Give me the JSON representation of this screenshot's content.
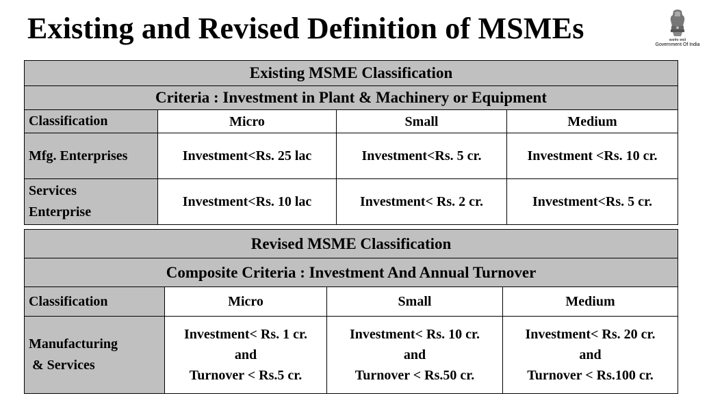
{
  "title": "Existing and Revised Definition of MSMEs",
  "emblem": {
    "motto": "सत्यमेव जयते",
    "caption": "Government Of India"
  },
  "existing": {
    "heading": "Existing MSME Classification",
    "criteria": "Criteria  :  Investment in Plant & Machinery or Equipment",
    "columns": [
      "Classification",
      "Micro",
      "Small",
      "Medium"
    ],
    "rows": [
      {
        "label": "Mfg. Enterprises",
        "micro": "Investment<Rs. 25 lac",
        "small": "Investment<Rs. 5 cr.",
        "medium": "Investment <Rs. 10 cr."
      },
      {
        "label_lines": [
          "Services",
          "Enterprise"
        ],
        "micro": "Investment<Rs. 10 lac",
        "small": "Investment< Rs. 2 cr.",
        "medium": "Investment<Rs. 5 cr."
      }
    ]
  },
  "revised": {
    "heading": "Revised MSME Classification",
    "criteria": "Composite Criteria  :  Investment And Annual Turnover",
    "columns": [
      "Classification",
      "Micro",
      "Small",
      "Medium"
    ],
    "row": {
      "label_lines": [
        "Manufacturing",
        " & Services"
      ],
      "micro": [
        "Investment< Rs. 1 cr.",
        "and",
        "Turnover < Rs.5 cr."
      ],
      "small": [
        "Investment< Rs. 10 cr.",
        "and",
        "Turnover < Rs.50 cr."
      ],
      "medium": [
        "Investment< Rs. 20 cr.",
        "and",
        "Turnover < Rs.100 cr."
      ]
    }
  }
}
